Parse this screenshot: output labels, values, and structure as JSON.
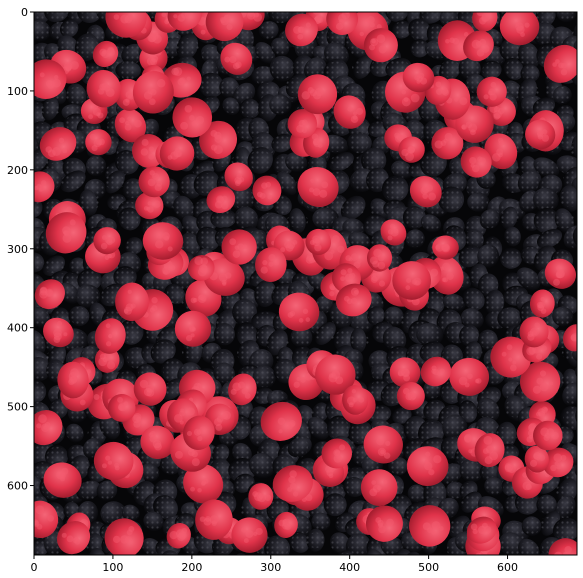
{
  "figure": {
    "type": "image-plot",
    "image_subject": "raspberries and blackberries",
    "image_extent": {
      "x": [
        0,
        688
      ],
      "y": [
        0,
        688
      ]
    },
    "x_axis": {
      "ticks": [
        0,
        100,
        200,
        300,
        400,
        500,
        600
      ],
      "labels": [
        "0",
        "100",
        "200",
        "300",
        "400",
        "500",
        "600"
      ],
      "range": [
        0,
        688
      ]
    },
    "y_axis": {
      "ticks": [
        0,
        100,
        200,
        300,
        400,
        500,
        600
      ],
      "labels": [
        "0",
        "100",
        "200",
        "300",
        "400",
        "500",
        "600"
      ],
      "range": [
        0,
        688
      ],
      "inverted": true
    },
    "colors": {
      "blackberry": "#15151b",
      "blackberry_highlight": "#3a3a44",
      "raspberry": "#e0334a",
      "raspberry_highlight": "#f45b6f",
      "gap": "#060608"
    }
  }
}
